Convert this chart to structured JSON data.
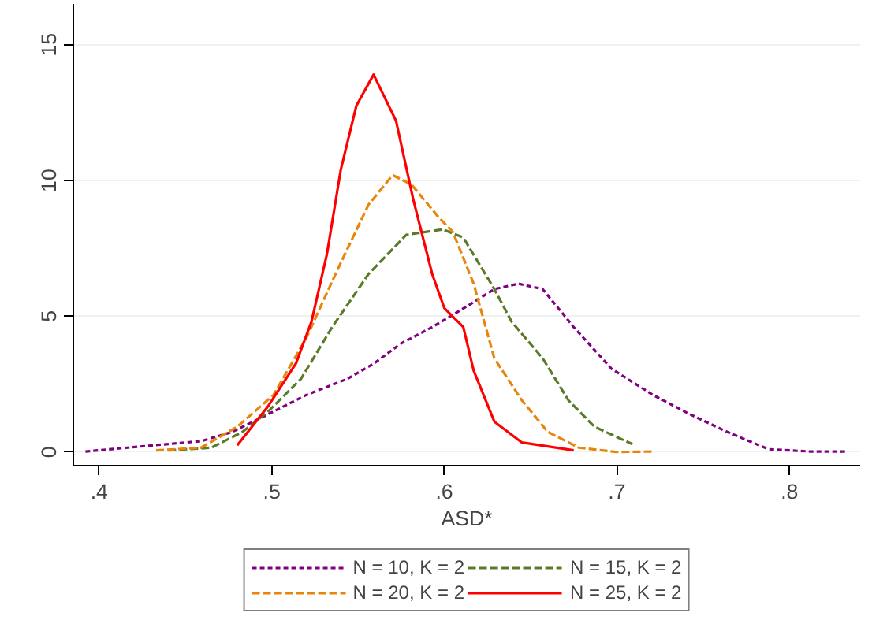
{
  "chart_data": {
    "type": "line",
    "xlabel": "ASD*",
    "xlim": [
      0.385,
      0.841
    ],
    "ylim": [
      -0.5,
      16.5
    ],
    "xticks": [
      {
        "value": 0.4,
        "label": ".4"
      },
      {
        "value": 0.5,
        "label": ".5"
      },
      {
        "value": 0.6,
        "label": ".6"
      },
      {
        "value": 0.7,
        "label": ".7"
      },
      {
        "value": 0.8,
        "label": ".8"
      }
    ],
    "yticks": [
      0,
      5,
      10,
      15
    ],
    "grid": "y",
    "legend": "bottom",
    "marker": "none",
    "series": [
      {
        "name": "N = 10, K = 2",
        "color": "#800080",
        "line_style": "dotted",
        "x": [
          0.392,
          0.425,
          0.459,
          0.477,
          0.495,
          0.52,
          0.544,
          0.559,
          0.575,
          0.593,
          0.614,
          0.629,
          0.643,
          0.657,
          0.675,
          0.697,
          0.721,
          0.742,
          0.764,
          0.788,
          0.812,
          0.834
        ],
        "values": [
          0.02,
          0.21,
          0.4,
          0.74,
          1.3,
          2.1,
          2.7,
          3.25,
          4.0,
          4.6,
          5.4,
          6.0,
          6.2,
          6.0,
          4.6,
          3.06,
          2.1,
          1.4,
          0.74,
          0.1,
          0.02,
          0.02
        ]
      },
      {
        "name": "N = 15, K = 2",
        "color": "#5a7a2a",
        "line_style": "dashed",
        "x": [
          0.44,
          0.465,
          0.483,
          0.498,
          0.517,
          0.535,
          0.556,
          0.578,
          0.599,
          0.611,
          0.629,
          0.639,
          0.657,
          0.672,
          0.687,
          0.709
        ],
        "values": [
          0.06,
          0.16,
          0.74,
          1.5,
          2.7,
          4.6,
          6.55,
          8.0,
          8.2,
          7.9,
          6.0,
          4.8,
          3.45,
          1.9,
          0.93,
          0.29
        ]
      },
      {
        "name": "N = 20, K = 2",
        "color": "#e8860b",
        "line_style": "dashed",
        "x": [
          0.433,
          0.459,
          0.48,
          0.501,
          0.52,
          0.538,
          0.556,
          0.57,
          0.581,
          0.596,
          0.605,
          0.617,
          0.629,
          0.645,
          0.66,
          0.678,
          0.7,
          0.721
        ],
        "values": [
          0.06,
          0.16,
          0.93,
          2.1,
          4.2,
          6.7,
          9.1,
          10.2,
          9.85,
          8.7,
          8.1,
          6.2,
          3.45,
          1.9,
          0.74,
          0.16,
          0.0,
          0.02
        ]
      },
      {
        "name": "N = 25, K = 2",
        "color": "#ff0000",
        "line_style": "solid",
        "x": [
          0.48,
          0.498,
          0.514,
          0.523,
          0.532,
          0.54,
          0.549,
          0.559,
          0.572,
          0.582,
          0.593,
          0.6,
          0.611,
          0.617,
          0.629,
          0.645,
          0.675
        ],
        "values": [
          0.25,
          1.7,
          3.26,
          4.8,
          7.3,
          10.4,
          12.75,
          13.9,
          12.2,
          9.3,
          6.55,
          5.3,
          4.6,
          3.0,
          1.12,
          0.35,
          0.06
        ]
      }
    ]
  }
}
